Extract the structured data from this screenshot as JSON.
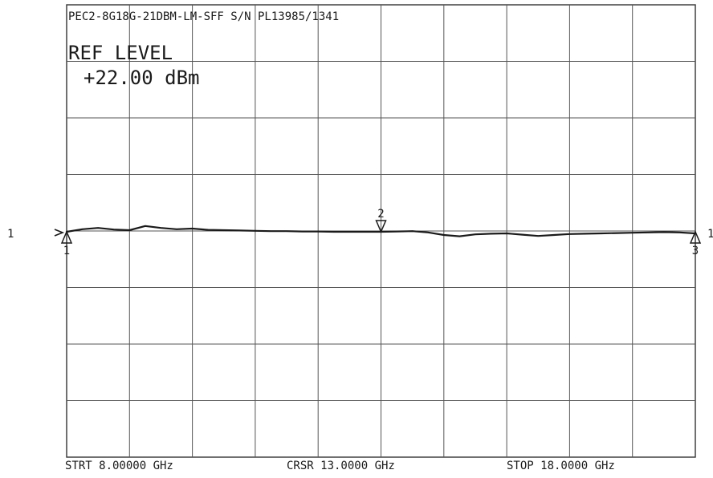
{
  "chart_data": {
    "type": "line",
    "title": "PEC2-8G18G-21DBM-LM-SFF S/N PL13985/1341",
    "ref_level_label": "REF LEVEL",
    "ref_level_value": "+22.00 dBm",
    "footer": {
      "start": "STRT 8.00000 GHz",
      "cursor": "CRSR 13.0000 GHz",
      "stop": "STOP 18.0000 GHz"
    },
    "x_range": [
      8.0,
      18.0
    ],
    "grid": {
      "columns": 10,
      "rows": 8,
      "on": true
    },
    "reference_line_label": "1",
    "series": [
      {
        "x": [
          8.0,
          8.25,
          8.5,
          8.75,
          9.0,
          9.25,
          9.5,
          9.75,
          10.0,
          10.25,
          10.5,
          10.75,
          11.0,
          11.25,
          11.5,
          11.75,
          12.0,
          12.25,
          12.5,
          12.75,
          13.0,
          13.25,
          13.5,
          13.75,
          14.0,
          14.25,
          14.5,
          14.75,
          15.0,
          15.25,
          15.5,
          15.75,
          16.0,
          16.25,
          16.5,
          16.75,
          17.0,
          17.25,
          17.5,
          17.75,
          18.0
        ],
        "y": [
          0.0,
          0.08,
          0.12,
          0.07,
          0.05,
          0.18,
          0.12,
          0.08,
          0.1,
          0.06,
          0.05,
          0.04,
          0.03,
          0.02,
          0.02,
          0.01,
          0.01,
          0.0,
          0.0,
          0.0,
          0.0,
          0.01,
          0.02,
          -0.02,
          -0.1,
          -0.14,
          -0.08,
          -0.06,
          -0.05,
          -0.09,
          -0.13,
          -0.1,
          -0.07,
          -0.06,
          -0.05,
          -0.04,
          -0.03,
          -0.02,
          -0.01,
          -0.02,
          -0.05
        ]
      }
    ],
    "markers": [
      {
        "label": "1",
        "x": 8.0,
        "style": "up"
      },
      {
        "label": "2",
        "x": 13.0,
        "style": "down"
      },
      {
        "label": "3",
        "x": 18.0,
        "style": "up"
      }
    ]
  }
}
